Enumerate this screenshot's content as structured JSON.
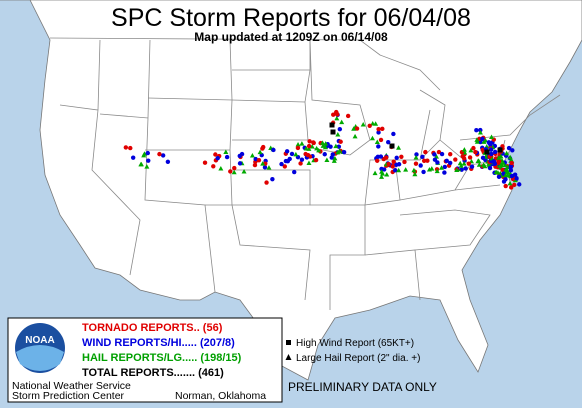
{
  "header": {
    "title": "SPC Storm Reports for 06/04/08",
    "subtitle": "Map updated at 1209Z on 06/14/08"
  },
  "legend": {
    "logo": "NOAA",
    "rows": [
      "TORNADO REPORTS.. (56)",
      "WIND REPORTS/HI..... (207/8)",
      "HAIL REPORTS/LG..... (198/15)",
      "TOTAL REPORTS....... (461)"
    ],
    "symbols": [
      "High Wind Report (65KT+)",
      "Large Hail Report (2\" dia. +)"
    ],
    "agency": "National Weather Service",
    "center": "Storm Prediction Center",
    "location": "Norman, Oklahoma"
  },
  "notice": "PRELIMINARY DATA ONLY"
}
